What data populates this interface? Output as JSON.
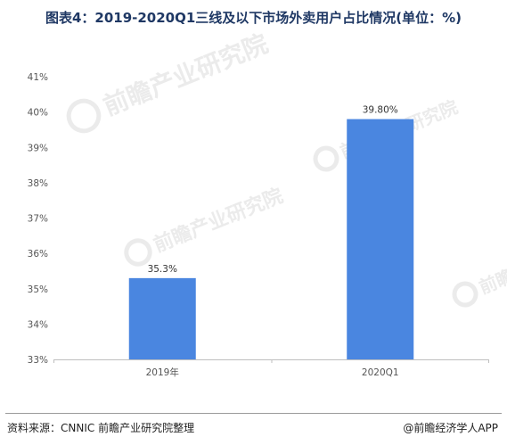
{
  "title": "图表4：2019-2020Q1三线及以下市场外卖用户占比情况(单位：%)",
  "watermark": "前瞻产业研究院",
  "footer": {
    "source": "资料来源：CNNIC 前瞻产业研究院整理",
    "brand": "@前瞻经济学人APP"
  },
  "colors": {
    "bar": "#4a86e0",
    "title": "#1f3864",
    "axis": "#bfbfbf"
  },
  "chart_data": {
    "type": "bar",
    "categories": [
      "2019年",
      "2020Q1"
    ],
    "values": [
      35.3,
      39.8
    ],
    "data_labels": [
      "35.3%",
      "39.80%"
    ],
    "yticks": [
      "33%",
      "34%",
      "35%",
      "36%",
      "37%",
      "38%",
      "39%",
      "40%",
      "41%"
    ],
    "ylim": [
      33,
      41
    ],
    "grid": false,
    "title": "图表4：2019-2020Q1三线及以下市场外卖用户占比情况(单位：%)",
    "xlabel": "",
    "ylabel": ""
  }
}
